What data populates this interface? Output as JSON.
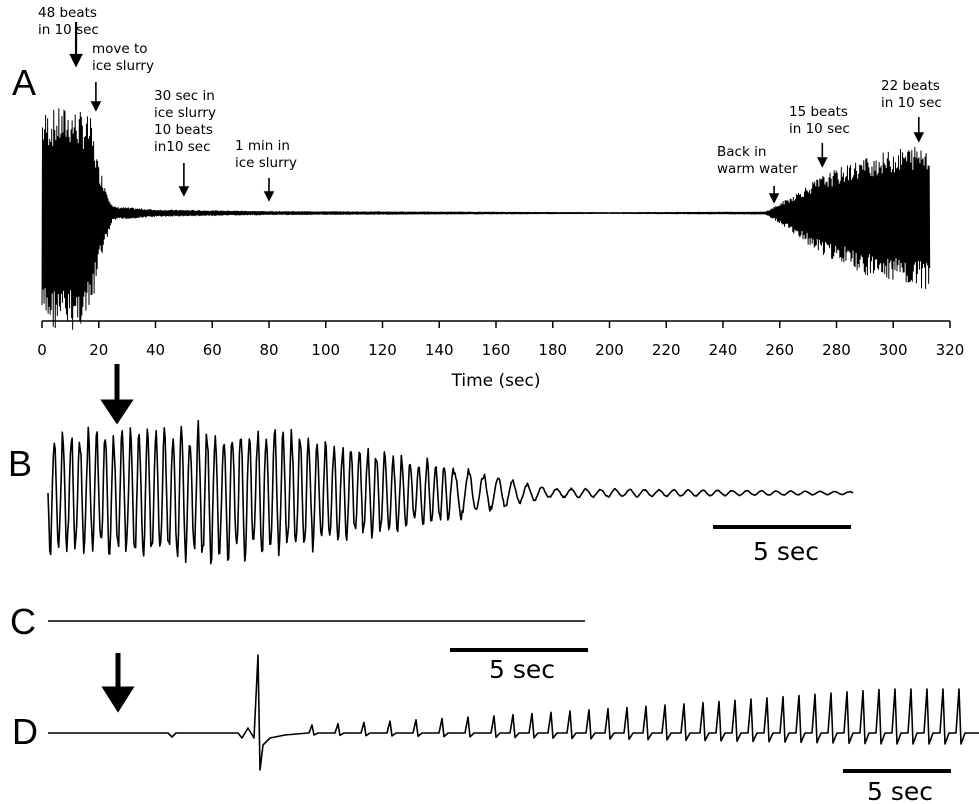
{
  "chart_data": [
    {
      "panel": "A",
      "type": "line",
      "xlabel": "Time (sec)",
      "xlim": [
        0,
        320
      ],
      "xticks": [
        0,
        20,
        40,
        60,
        80,
        100,
        120,
        140,
        160,
        180,
        200,
        220,
        240,
        260,
        280,
        300,
        320
      ],
      "ylabel": "",
      "series": [
        {
          "envelope_points": [
            {
              "x": 0,
              "amplitude": 0.95
            },
            {
              "x": 10,
              "amplitude": 1.0
            },
            {
              "x": 17,
              "amplitude": 0.9
            },
            {
              "x": 20,
              "amplitude": 0.45
            },
            {
              "x": 25,
              "amplitude": 0.06
            },
            {
              "x": 40,
              "amplitude": 0.03
            },
            {
              "x": 80,
              "amplitude": 0.015
            },
            {
              "x": 200,
              "amplitude": 0.005
            },
            {
              "x": 255,
              "amplitude": 0.01
            },
            {
              "x": 262,
              "amplitude": 0.12
            },
            {
              "x": 275,
              "amplitude": 0.35
            },
            {
              "x": 290,
              "amplitude": 0.52
            },
            {
              "x": 305,
              "amplitude": 0.62
            },
            {
              "x": 313,
              "amplitude": 0.65
            }
          ]
        }
      ],
      "annotations": [
        {
          "x": 12,
          "lines": [
            "48 beats",
            "in 10 sec"
          ]
        },
        {
          "x": 19,
          "lines": [
            "move to",
            "ice slurry"
          ]
        },
        {
          "x": 50,
          "lines": [
            "30 sec in",
            "ice slurry",
            "10 beats",
            "in10 sec"
          ]
        },
        {
          "x": 80,
          "lines": [
            "1 min in",
            "ice slurry"
          ]
        },
        {
          "x": 258,
          "lines": [
            "Back in",
            "warm water"
          ]
        },
        {
          "x": 275,
          "lines": [
            "15 beats",
            "in 10 sec"
          ]
        },
        {
          "x": 309,
          "lines": [
            "22 beats",
            "in 10 sec"
          ]
        }
      ]
    },
    {
      "panel": "B",
      "type": "line",
      "scale_bar": "5 sec",
      "description_points": [
        {
          "t": 0,
          "amplitude": 0.9
        },
        {
          "t": 0.25,
          "amplitude": 1.0
        },
        {
          "t": 0.5,
          "amplitude": 0.4
        },
        {
          "t": 0.62,
          "amplitude": 0.07
        },
        {
          "t": 1.0,
          "amplitude": 0.02
        }
      ]
    },
    {
      "panel": "C",
      "type": "line",
      "scale_bar": "5 sec",
      "description_points": [
        {
          "t": 0,
          "amplitude": 0
        },
        {
          "t": 1,
          "amplitude": 0
        }
      ]
    },
    {
      "panel": "D",
      "type": "line",
      "scale_bar": "5 sec",
      "description_points": [
        {
          "t": 0,
          "amplitude": 0
        },
        {
          "t": 0.27,
          "amplitude": 0.02
        },
        {
          "t": 0.28,
          "amplitude": 1.0
        },
        {
          "t": 0.45,
          "amplitude": 0.25
        },
        {
          "t": 0.7,
          "amplitude": 0.5
        },
        {
          "t": 1.0,
          "amplitude": 0.7
        }
      ]
    }
  ]
}
